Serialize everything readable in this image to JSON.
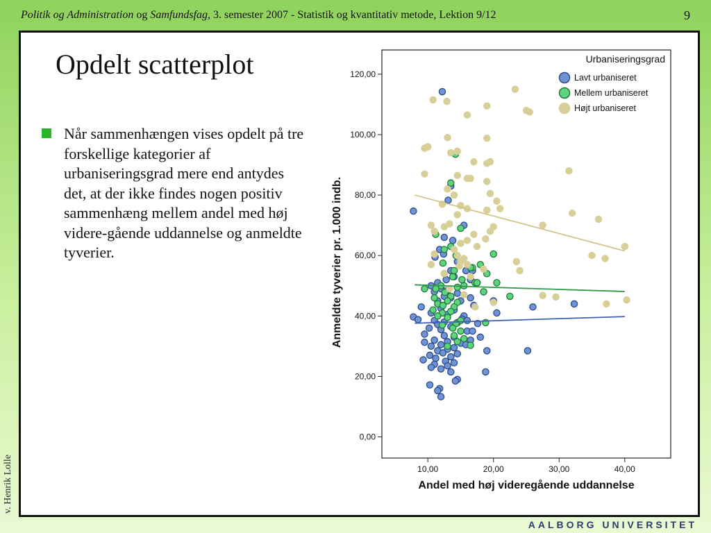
{
  "header": {
    "title_part1": "Politik og Administration",
    "title_part2": " og ",
    "title_part3": "Samfundsfag",
    "title_part4": ", 3. semester 2007 - Statistik og kvantitativ metode, Lektion 9/12",
    "page_number": "9"
  },
  "side_author": "v. Henrik Lolle",
  "slide": {
    "title": "Opdelt scatterplot",
    "bullet": "Når sammenhængen vises opdelt på tre forskellige kategorier af urbaniseringsgrad mere end antydes det, at der ikke findes nogen positiv sammenhæng mellem andel med høj videre-gående uddannelse og anmeldte tyverier."
  },
  "footer_logo": "AALBORG UNIVERSITET",
  "colors": {
    "header_gradient_top": "#8fd25c",
    "bullet_marker": "#2bb52b",
    "lav_fill": "#6f93d3",
    "lav_stroke": "#2b4c8c",
    "mellem_fill": "#5fd47f",
    "mellem_stroke": "#217a3c",
    "hojt_fill": "#d8cf98",
    "hojt_stroke": "#d8cf98",
    "lav_line": "#3e5fb0",
    "mellem_line": "#2e9a48",
    "hojt_line": "#d1c58c"
  },
  "chart_data": {
    "type": "scatter",
    "xlabel": "Andel med høj videregående uddannelse",
    "ylabel": "Anmeldte tyverier pr. 1.000 indb.",
    "xlim": [
      3,
      47
    ],
    "ylim": [
      -7,
      128
    ],
    "xticks": [
      10,
      20,
      30,
      40
    ],
    "xtick_labels": [
      "10,00",
      "20,00",
      "30,00",
      "40,00"
    ],
    "yticks": [
      0,
      20,
      40,
      60,
      80,
      100,
      120
    ],
    "ytick_labels": [
      "0,00",
      "20,00",
      "40,00",
      "60,00",
      "80,00",
      "100,00",
      "120,00"
    ],
    "grid": false,
    "legend": {
      "title": "Urbaniseringsgrad",
      "position": "top-right"
    },
    "series": [
      {
        "name": "Lavt urbaniseret",
        "color_key": "lav",
        "fit_line": [
          [
            8,
            37.6
          ],
          [
            40,
            39.8
          ]
        ],
        "points": [
          [
            12.2,
            114.2
          ],
          [
            7.8,
            74.7
          ],
          [
            13.5,
            83
          ],
          [
            13.1,
            78.3
          ],
          [
            15.5,
            70
          ],
          [
            12.5,
            66
          ],
          [
            13.8,
            65
          ],
          [
            11.8,
            62
          ],
          [
            12.4,
            60.5
          ],
          [
            11.1,
            59.5
          ],
          [
            14.5,
            58
          ],
          [
            13.5,
            55
          ],
          [
            15.8,
            55
          ],
          [
            14,
            53
          ],
          [
            12.8,
            52
          ],
          [
            11.5,
            51
          ],
          [
            10.5,
            50
          ],
          [
            12,
            49
          ],
          [
            13,
            48.5
          ],
          [
            11,
            48
          ],
          [
            14.5,
            47.5
          ],
          [
            12.5,
            46.5
          ],
          [
            13.5,
            46
          ],
          [
            15,
            45
          ],
          [
            11.5,
            45
          ],
          [
            9,
            43
          ],
          [
            12,
            42.5
          ],
          [
            14,
            42
          ],
          [
            10.5,
            41
          ],
          [
            13,
            40.5
          ],
          [
            15.5,
            40
          ],
          [
            7.8,
            39.7
          ],
          [
            8.5,
            38.8
          ],
          [
            11,
            38.5
          ],
          [
            12.5,
            38
          ],
          [
            14.5,
            37.8
          ],
          [
            11.5,
            37.2
          ],
          [
            13.5,
            36.5
          ],
          [
            10.2,
            36
          ],
          [
            12,
            35.5
          ],
          [
            16,
            35
          ],
          [
            9.5,
            34
          ],
          [
            12.5,
            33.5
          ],
          [
            14,
            33
          ],
          [
            11,
            32
          ],
          [
            13,
            31.5
          ],
          [
            9.5,
            31.3
          ],
          [
            15,
            31
          ],
          [
            12,
            30.5
          ],
          [
            10.5,
            30
          ],
          [
            14,
            29.5
          ],
          [
            13,
            29
          ],
          [
            11.5,
            28.5
          ],
          [
            12.3,
            27.8
          ],
          [
            14.5,
            27.5
          ],
          [
            10.3,
            27
          ],
          [
            13.5,
            26.5
          ],
          [
            11.2,
            26
          ],
          [
            9.3,
            25.5
          ],
          [
            12.7,
            25
          ],
          [
            14,
            24.5
          ],
          [
            11,
            24
          ],
          [
            13,
            23.5
          ],
          [
            10.5,
            23
          ],
          [
            12,
            22.5
          ],
          [
            13.5,
            21.5
          ],
          [
            14.5,
            19
          ],
          [
            14.2,
            18.5
          ],
          [
            10.3,
            17.2
          ],
          [
            11.8,
            16
          ],
          [
            11.5,
            15.3
          ],
          [
            12,
            13.3
          ],
          [
            19,
            28.5
          ],
          [
            18.8,
            21.5
          ],
          [
            25.2,
            28.5
          ],
          [
            26,
            43
          ],
          [
            20.5,
            41
          ],
          [
            20,
            45
          ],
          [
            32.3,
            44
          ],
          [
            16.5,
            46
          ],
          [
            17.5,
            51
          ],
          [
            16.8,
            55
          ],
          [
            16.5,
            52
          ],
          [
            18.5,
            48
          ],
          [
            17,
            43.5
          ],
          [
            15.2,
            39
          ],
          [
            16,
            38.5
          ],
          [
            17.6,
            37.5
          ],
          [
            18,
            33
          ],
          [
            16.8,
            35
          ],
          [
            15.8,
            30.5
          ],
          [
            16.5,
            32
          ]
        ]
      },
      {
        "name": "Mellem urbaniseret",
        "color_key": "mellem",
        "fit_line": [
          [
            8,
            50.3
          ],
          [
            40,
            48.1
          ]
        ],
        "points": [
          [
            14.2,
            93.5
          ],
          [
            13.5,
            84
          ],
          [
            15,
            69
          ],
          [
            11.2,
            67
          ],
          [
            13.5,
            63
          ],
          [
            12.5,
            62
          ],
          [
            14.3,
            60
          ],
          [
            12.3,
            57.5
          ],
          [
            16.8,
            56
          ],
          [
            14,
            55
          ],
          [
            12.5,
            54
          ],
          [
            13.8,
            53
          ],
          [
            15.2,
            52
          ],
          [
            17.2,
            51
          ],
          [
            12,
            50
          ],
          [
            14.5,
            49.5
          ],
          [
            9.5,
            49
          ],
          [
            11.2,
            49
          ],
          [
            12.6,
            47.8
          ],
          [
            13.5,
            46.5
          ],
          [
            11,
            46
          ],
          [
            13,
            45
          ],
          [
            14.5,
            44.5
          ],
          [
            11.5,
            44
          ],
          [
            12.3,
            43.5
          ],
          [
            14,
            43
          ],
          [
            10.8,
            42
          ],
          [
            13.5,
            41.5
          ],
          [
            12.2,
            41
          ],
          [
            11.5,
            40
          ],
          [
            13,
            39.5
          ],
          [
            15,
            38.5
          ],
          [
            14.3,
            37.5
          ],
          [
            12.2,
            37
          ],
          [
            13.8,
            36
          ],
          [
            15,
            35
          ],
          [
            14,
            33.5
          ],
          [
            15.5,
            32.5
          ],
          [
            14.5,
            31.5
          ],
          [
            13,
            30
          ],
          [
            18.8,
            37.8
          ],
          [
            16.5,
            30.3
          ],
          [
            17.5,
            51
          ],
          [
            19,
            54
          ],
          [
            20.5,
            51
          ],
          [
            20,
            60.5
          ],
          [
            18,
            57
          ],
          [
            22.5,
            46.5
          ],
          [
            18.5,
            48
          ],
          [
            15.5,
            50
          ],
          [
            16.5,
            56
          ]
        ]
      },
      {
        "name": "Højt urbaniseret",
        "color_key": "hojt",
        "fit_line": [
          [
            8,
            80
          ],
          [
            40,
            61.5
          ]
        ],
        "points": [
          [
            23.3,
            115
          ],
          [
            10.8,
            111.5
          ],
          [
            12.9,
            111
          ],
          [
            19,
            109.5
          ],
          [
            16,
            106.5
          ],
          [
            25,
            108
          ],
          [
            25.5,
            107.5
          ],
          [
            13,
            99
          ],
          [
            19,
            98.8
          ],
          [
            9.5,
            95.5
          ],
          [
            10,
            96
          ],
          [
            14.5,
            94.5
          ],
          [
            13.5,
            94
          ],
          [
            17,
            91
          ],
          [
            19,
            90.5
          ],
          [
            19.5,
            91
          ],
          [
            14.5,
            86.5
          ],
          [
            16,
            85.5
          ],
          [
            16.5,
            85.5
          ],
          [
            19,
            84.5
          ],
          [
            13,
            82
          ],
          [
            14,
            80
          ],
          [
            19.5,
            80.5
          ],
          [
            31.5,
            88
          ],
          [
            9.5,
            87
          ],
          [
            12.2,
            77
          ],
          [
            15,
            76.5
          ],
          [
            16,
            75.5
          ],
          [
            19,
            75
          ],
          [
            20.5,
            78
          ],
          [
            21,
            75.5
          ],
          [
            14.5,
            73.5
          ],
          [
            32,
            74
          ],
          [
            36,
            72
          ],
          [
            27.5,
            70
          ],
          [
            12.5,
            69.5
          ],
          [
            11,
            68
          ],
          [
            10.5,
            70
          ],
          [
            13.3,
            70.5
          ],
          [
            16,
            65
          ],
          [
            17,
            67
          ],
          [
            18.8,
            65.5
          ],
          [
            19.5,
            68
          ],
          [
            20,
            69.5
          ],
          [
            15,
            64
          ],
          [
            14,
            62
          ],
          [
            17.5,
            63
          ],
          [
            14.5,
            60
          ],
          [
            11,
            60.5
          ],
          [
            15.5,
            59
          ],
          [
            16,
            57
          ],
          [
            18.5,
            55.5
          ],
          [
            23.5,
            58
          ],
          [
            24,
            55
          ],
          [
            40,
            63
          ],
          [
            35,
            60
          ],
          [
            37,
            59
          ],
          [
            10.5,
            57
          ],
          [
            15,
            58
          ],
          [
            16.5,
            53
          ],
          [
            14.8,
            56.5
          ],
          [
            12.5,
            54
          ],
          [
            40.3,
            45.3
          ],
          [
            37.2,
            44
          ],
          [
            29.5,
            46.3
          ],
          [
            27.5,
            46.8
          ],
          [
            20,
            44.5
          ],
          [
            17.2,
            43
          ],
          [
            15.5,
            47
          ],
          [
            13.3,
            49
          ]
        ]
      }
    ]
  }
}
